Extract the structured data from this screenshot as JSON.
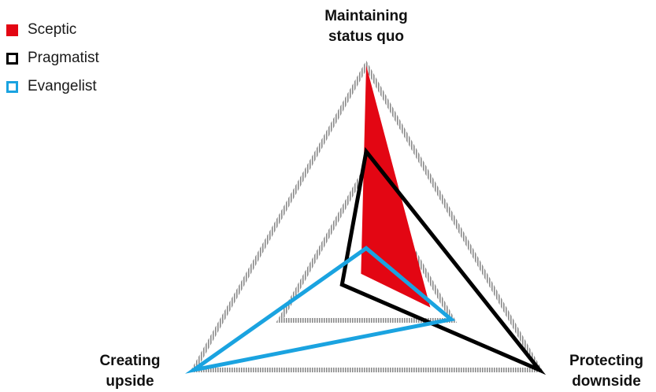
{
  "legend": {
    "items": [
      {
        "label": "Sceptic",
        "style": "filled",
        "color": "#e30613"
      },
      {
        "label": "Pragmatist",
        "style": "outline",
        "color": "#000000"
      },
      {
        "label": "Evangelist",
        "style": "outline",
        "color": "#1aa3e0"
      }
    ]
  },
  "axes": {
    "top": {
      "line1": "Maintaining",
      "line2": "status quo"
    },
    "left": {
      "line1": "Creating",
      "line2": "upside"
    },
    "right": {
      "line1": "Protecting",
      "line2": "downside"
    }
  },
  "chart_data": {
    "type": "radar",
    "axes": [
      "Maintaining status quo",
      "Protecting downside",
      "Creating upside"
    ],
    "range": [
      0,
      1
    ],
    "grid_levels": [
      0.5,
      1.0
    ],
    "grid_style": "dotted grey triangle",
    "legend_position": "top-left",
    "series": [
      {
        "name": "Sceptic",
        "style": "filled",
        "color": "#e30613",
        "values": {
          "Maintaining status quo": 1.0,
          "Protecting downside": 0.37,
          "Creating upside": 0.03
        }
      },
      {
        "name": "Pragmatist",
        "style": "outline",
        "color": "#000000",
        "values": {
          "Maintaining status quo": 0.58,
          "Protecting downside": 1.0,
          "Creating upside": 0.14
        }
      },
      {
        "name": "Evangelist",
        "style": "outline",
        "color": "#1aa3e0",
        "values": {
          "Maintaining status quo": 0.11,
          "Protecting downside": 0.49,
          "Creating upside": 1.0
        }
      }
    ]
  }
}
